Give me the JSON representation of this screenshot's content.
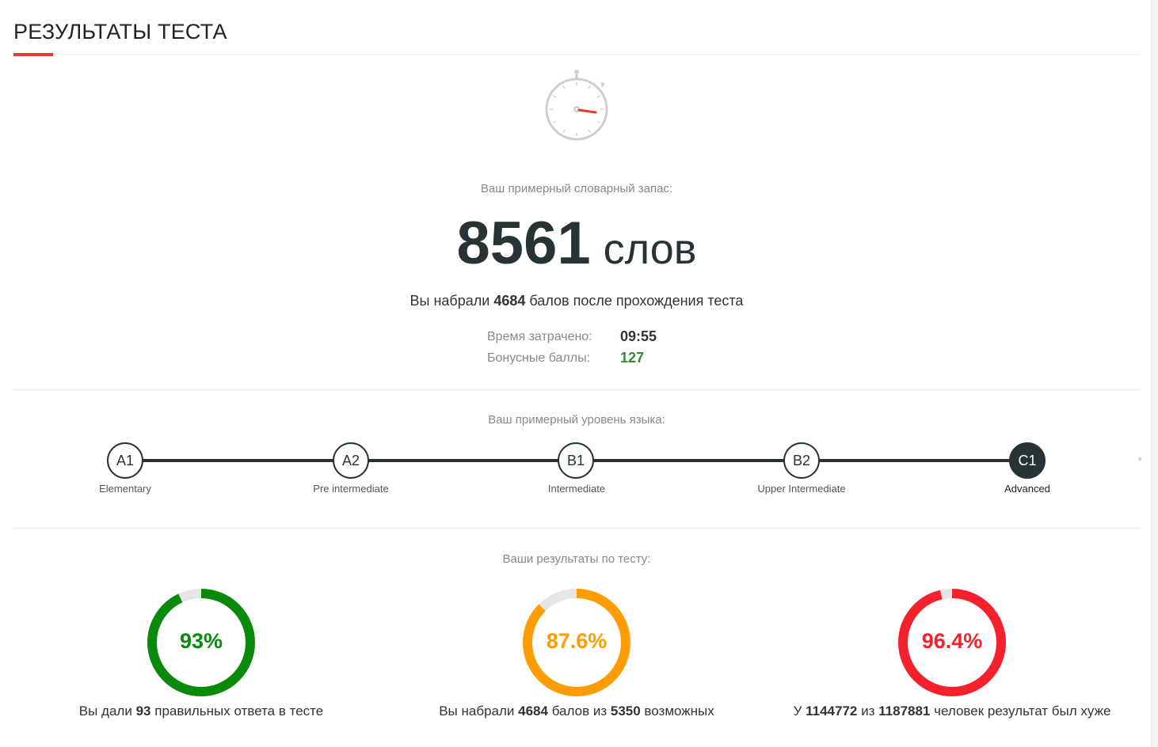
{
  "page": {
    "title": "РЕЗУЛЬТАТЫ ТЕСТА"
  },
  "vocab": {
    "label": "Ваш примерный словарный запас:",
    "number": "8561",
    "unit": "слов"
  },
  "score_line": {
    "prefix": "Вы набрали",
    "points": "4684",
    "suffix": "балов после прохождения теста"
  },
  "stats": {
    "time_label": "Время затрачено:",
    "time_value": "09:55",
    "bonus_label": "Бонусные баллы:",
    "bonus_value": "127"
  },
  "level": {
    "label": "Ваш примерный уровень языка:",
    "current": "C1",
    "nodes": [
      {
        "code": "A1",
        "name": "Elementary"
      },
      {
        "code": "A2",
        "name": "Pre intermediate"
      },
      {
        "code": "B1",
        "name": "Intermediate"
      },
      {
        "code": "B2",
        "name": "Upper Intermediate"
      },
      {
        "code": "C1",
        "name": "Advanced"
      }
    ]
  },
  "results": {
    "label": "Ваши результаты по тесту:",
    "cards": [
      {
        "percent_text": "93%",
        "fraction": 0.93,
        "color": "#0a8a0a",
        "caption_pre": "Вы дали",
        "num1": "93",
        "caption_mid": "правильных ответа в тесте",
        "num2": "",
        "caption_post": ""
      },
      {
        "percent_text": "87.6%",
        "fraction": 0.876,
        "color": "#ff9d00",
        "caption_pre": "Вы набрали",
        "num1": "4684",
        "caption_mid": "балов из",
        "num2": "5350",
        "caption_post": "возможных"
      },
      {
        "percent_text": "96.4%",
        "fraction": 0.964,
        "color": "#f5222d",
        "caption_pre": "У",
        "num1": "1144772",
        "caption_mid": "из",
        "num2": "1187881",
        "caption_post": "человек результат был хуже"
      }
    ]
  },
  "colors": {
    "accent": "#d9412b",
    "dark": "#283335",
    "track": "#e6e6e6"
  },
  "icons": {
    "stopwatch": "stopwatch-icon"
  }
}
